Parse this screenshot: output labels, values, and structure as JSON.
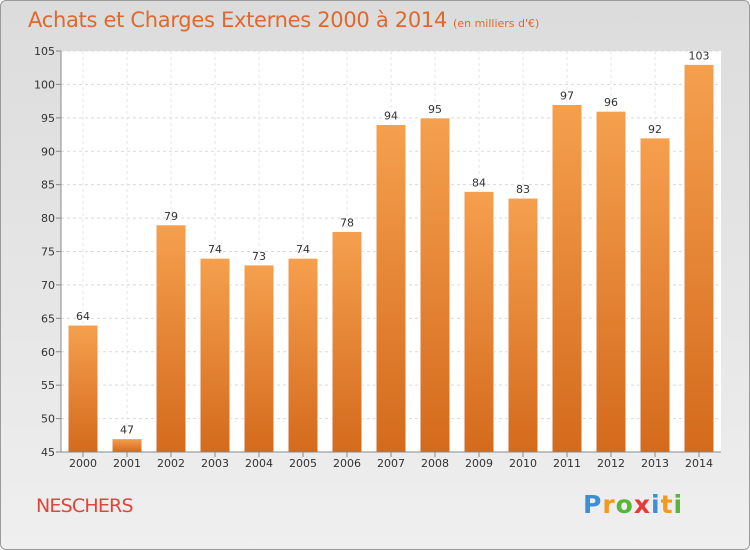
{
  "header": {
    "title": "Achats et Charges Externes 2000 à 2014",
    "unit": "(en milliers d'€)"
  },
  "footer": {
    "commune": "NESCHERS",
    "logo": "Proxiti"
  },
  "colors": {
    "title": "#e0682b",
    "commune": "#e0453b",
    "bar_light": "#f5a04e",
    "bar_dark": "#d46a1c"
  },
  "chart_data": {
    "type": "bar",
    "title": "Achats et Charges Externes 2000 à 2014",
    "subtitle": "(en milliers d'€)",
    "xlabel": "",
    "ylabel": "",
    "categories": [
      "2000",
      "2001",
      "2002",
      "2003",
      "2004",
      "2005",
      "2006",
      "2007",
      "2008",
      "2009",
      "2010",
      "2011",
      "2012",
      "2013",
      "2014"
    ],
    "values": [
      64,
      47,
      79,
      74,
      73,
      74,
      78,
      94,
      95,
      84,
      83,
      97,
      96,
      92,
      103
    ],
    "ylim": [
      45,
      105
    ],
    "yticks": [
      45,
      50,
      55,
      60,
      65,
      70,
      75,
      80,
      85,
      90,
      95,
      100,
      105
    ],
    "grid": true,
    "data_labels": true
  }
}
